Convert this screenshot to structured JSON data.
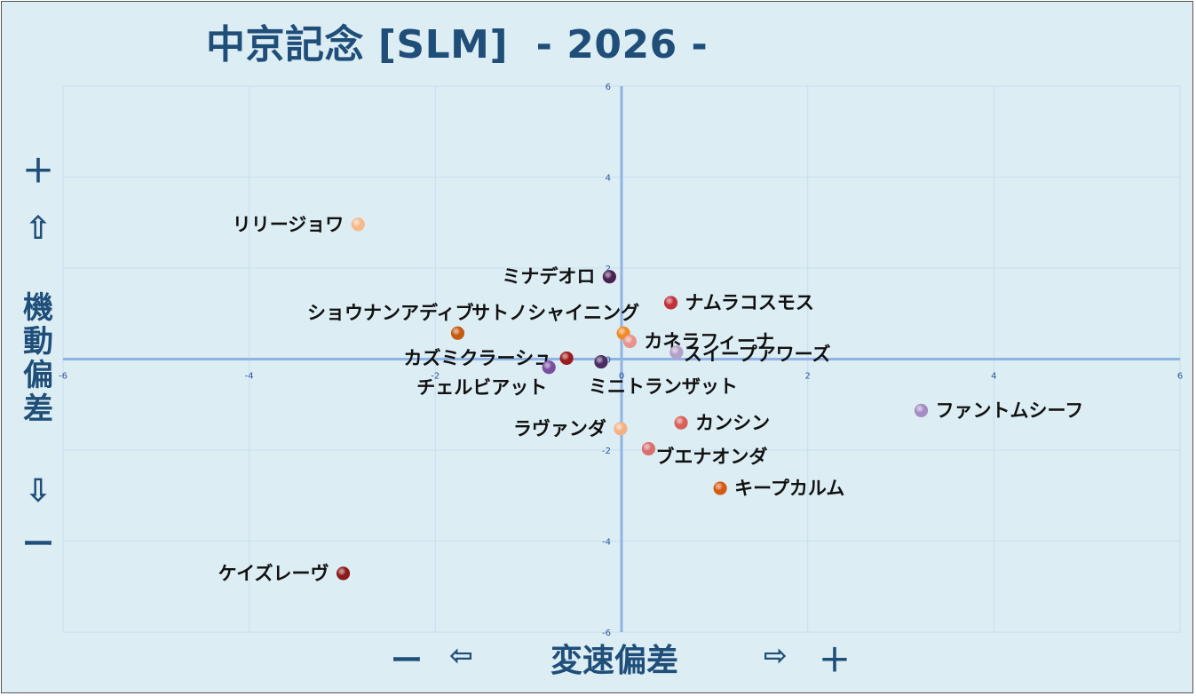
{
  "title": "中京記念 [SLM]  - 2026 -",
  "y_axis": {
    "plus": "＋",
    "up_arrow": "⇧",
    "label": "機動偏差",
    "down_arrow": "⇩",
    "minus": "ー"
  },
  "x_axis": {
    "minus": "ー",
    "left_arrow": "⇦",
    "label": "変速偏差",
    "right_arrow": "⇨",
    "plus": "＋"
  },
  "colors": {
    "background": "#dcedf4",
    "axis": "#8fb4e3",
    "grid": "#c9dff0",
    "text_accent": "#1f4e79"
  },
  "chart_data": {
    "type": "scatter",
    "xlim": [
      -6,
      6
    ],
    "ylim": [
      -6,
      6
    ],
    "x_ticks": [
      -6,
      -4,
      -2,
      0,
      2,
      4,
      6
    ],
    "y_ticks": [
      -6,
      -4,
      -2,
      0,
      2,
      4,
      6
    ],
    "x_tick_labels": [
      "-6",
      "-4",
      "-2",
      "0",
      "2",
      "4",
      "6"
    ],
    "y_tick_labels": [
      "-6",
      "-4",
      "-2",
      "0",
      "2",
      "4",
      "6"
    ],
    "grid": true,
    "points": [
      {
        "label": "リリージョワ",
        "x": -2.83,
        "y": 2.96,
        "color": "#f5b98a",
        "label_side": "left"
      },
      {
        "label": "ミナデオロ",
        "x": -0.13,
        "y": 1.81,
        "color": "#4b2154",
        "label_side": "left"
      },
      {
        "label": "ナムラコスモス",
        "x": 0.53,
        "y": 1.24,
        "color": "#c0333b",
        "label_side": "right"
      },
      {
        "label": "ショウナンアディブ",
        "x": -1.76,
        "y": 0.57,
        "color": "#c55a11",
        "label_side": "left-up"
      },
      {
        "label": "サトノシャイニング",
        "x": 0.02,
        "y": 0.57,
        "color": "#f08a24",
        "label_side": "left-up"
      },
      {
        "label": "カネラフィーナ",
        "x": 0.09,
        "y": 0.39,
        "color": "#e8948a",
        "label_side": "right"
      },
      {
        "label": "カズミクラーシュ",
        "x": -0.59,
        "y": 0.02,
        "color": "#9b1c1c",
        "label_side": "left"
      },
      {
        "label": "スイープアワーズ",
        "x": 0.59,
        "y": 0.15,
        "color": "#b4a0c8",
        "label_side": "right-down"
      },
      {
        "label": "チェルビアット",
        "x": -0.78,
        "y": -0.18,
        "color": "#7a4fa0",
        "label_side": "left-down"
      },
      {
        "label": "ミニトランザット",
        "x": -0.22,
        "y": -0.06,
        "color": "#4b2c63",
        "label_side": "right-down"
      },
      {
        "label": "ファントムシーフ",
        "x": 3.22,
        "y": -1.13,
        "color": "#a48cc4",
        "label_side": "right"
      },
      {
        "label": "カンシン",
        "x": 0.64,
        "y": -1.4,
        "color": "#d9605a",
        "label_side": "right"
      },
      {
        "label": "ラヴァンダ",
        "x": -0.01,
        "y": -1.53,
        "color": "#f4b183",
        "label_side": "left"
      },
      {
        "label": "ブエナオンダ",
        "x": 0.29,
        "y": -1.97,
        "color": "#d9706e",
        "label_side": "right-down"
      },
      {
        "label": "キープカルム",
        "x": 1.06,
        "y": -2.84,
        "color": "#d55a12",
        "label_side": "right"
      },
      {
        "label": "ケイズレーヴ",
        "x": -2.99,
        "y": -4.71,
        "color": "#8b1a1a",
        "label_side": "left"
      }
    ]
  }
}
